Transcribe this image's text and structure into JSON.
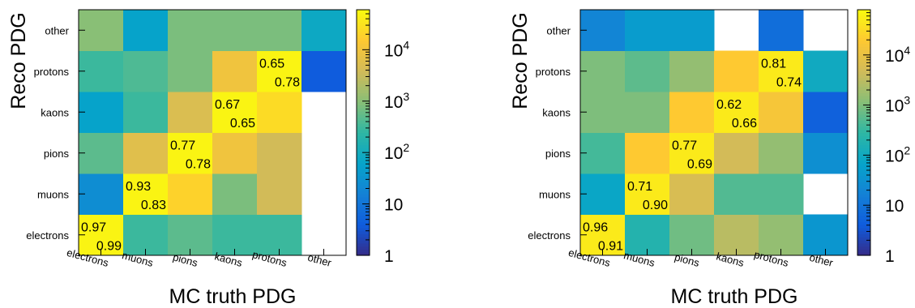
{
  "colorscale": [
    "#352a87",
    "#0f5cdd",
    "#1481d6",
    "#06a4ca",
    "#2eb7a4",
    "#87bf77",
    "#d1bb59",
    "#fec832",
    "#f9fb0e"
  ],
  "chart_data": [
    {
      "type": "heatmap",
      "xlabel": "MC truth PDG",
      "ylabel": "Reco PDG",
      "x_categories": [
        "electrons",
        "muons",
        "pions",
        "kaons",
        "protons",
        "other"
      ],
      "y_categories": [
        "electrons",
        "muons",
        "pions",
        "kaons",
        "protons",
        "other"
      ],
      "z_scale": "log",
      "z_range": [
        1,
        60000
      ],
      "colorbar_ticks": [
        "1",
        "10",
        "10^2",
        "10^3",
        "10^4"
      ],
      "colorbar_tick_values": [
        1,
        10,
        100,
        1000,
        10000
      ],
      "cells": [
        [
          50000,
          300,
          500,
          300,
          300,
          null
        ],
        [
          25,
          50000,
          20000,
          800,
          4000,
          null
        ],
        [
          500,
          6000,
          50000,
          10000,
          4000,
          null
        ],
        [
          60,
          300,
          5000,
          50000,
          25000,
          null
        ],
        [
          300,
          400,
          800,
          10000,
          50000,
          4
        ],
        [
          1000,
          60,
          800,
          800,
          800,
          80
        ]
      ],
      "annotations": [
        {
          "x": "electrons",
          "y": "electrons",
          "purity": "0.97",
          "efficiency": "0.99"
        },
        {
          "x": "muons",
          "y": "muons",
          "purity": "0.93",
          "efficiency": "0.83"
        },
        {
          "x": "pions",
          "y": "pions",
          "purity": "0.77",
          "efficiency": "0.78"
        },
        {
          "x": "kaons",
          "y": "kaons",
          "purity": "0.67",
          "efficiency": "0.65"
        },
        {
          "x": "protons",
          "y": "protons",
          "purity": "0.65",
          "efficiency": "0.78"
        }
      ]
    },
    {
      "type": "heatmap",
      "xlabel": "MC truth PDG",
      "ylabel": "Reco PDG",
      "x_categories": [
        "electrons",
        "muons",
        "pions",
        "kaons",
        "protons",
        "other"
      ],
      "y_categories": [
        "electrons",
        "muons",
        "pions",
        "kaons",
        "protons",
        "other"
      ],
      "z_scale": "log",
      "z_range": [
        1,
        80000
      ],
      "colorbar_ticks": [
        "1",
        "10",
        "10^2",
        "10^3",
        "10^4"
      ],
      "colorbar_tick_values": [
        1,
        10,
        100,
        1000,
        10000
      ],
      "cells": [
        [
          50000,
          200,
          800,
          3000,
          1500,
          40
        ],
        [
          80,
          50000,
          6000,
          500,
          500,
          null
        ],
        [
          400,
          20000,
          50000,
          5000,
          1500,
          30
        ],
        [
          1000,
          1000,
          20000,
          50000,
          15000,
          5
        ],
        [
          1000,
          600,
          1500,
          20000,
          50000,
          100
        ],
        [
          20,
          50,
          50,
          null,
          8,
          null
        ]
      ],
      "annotations": [
        {
          "x": "electrons",
          "y": "electrons",
          "purity": "0.96",
          "efficiency": "0.91"
        },
        {
          "x": "muons",
          "y": "muons",
          "purity": "0.71",
          "efficiency": "0.90"
        },
        {
          "x": "pions",
          "y": "pions",
          "purity": "0.77",
          "efficiency": "0.69"
        },
        {
          "x": "kaons",
          "y": "kaons",
          "purity": "0.62",
          "efficiency": "0.66"
        },
        {
          "x": "protons",
          "y": "protons",
          "purity": "0.81",
          "efficiency": "0.74"
        }
      ]
    }
  ]
}
